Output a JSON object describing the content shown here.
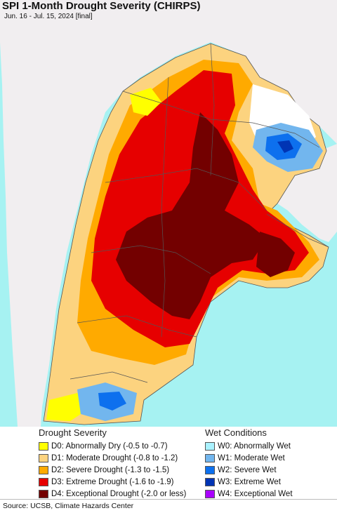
{
  "header": {
    "title": "SPI 1-Month Drought Severity (CHIRPS)",
    "subtitle": "Jun. 16 - Jul. 15, 2024 [final]"
  },
  "colors": {
    "ocean": "#a6f2f2",
    "neighbor_land": "#f1eef0",
    "no_data": "#ffffff",
    "boundary": "#555555",
    "D0": "#ffff00",
    "D1": "#fcd37f",
    "D2": "#ffaa00",
    "D3": "#e60000",
    "D4": "#730000",
    "W0": "#aaf2ff",
    "W1": "#72b6ee",
    "W2": "#0d70ee",
    "W3": "#0034b4",
    "W4": "#aa00ff"
  },
  "legend": {
    "drought_heading": "Drought Severity",
    "wet_heading": "Wet Conditions",
    "drought_items": [
      {
        "code": "D0",
        "label": "D0: Abnormally Dry (-0.5 to -0.7)",
        "color": "#ffff00"
      },
      {
        "code": "D1",
        "label": "D1: Moderate Drought (-0.8 to -1.2)",
        "color": "#fcd37f"
      },
      {
        "code": "D2",
        "label": "D2: Severe Drought (-1.3 to -1.5)",
        "color": "#ffaa00"
      },
      {
        "code": "D3",
        "label": "D3: Extreme Drought (-1.6 to -1.9)",
        "color": "#e60000"
      },
      {
        "code": "D4",
        "label": "D4: Exceptional Drought (-2.0 or less)",
        "color": "#730000"
      }
    ],
    "wet_items": [
      {
        "code": "W0",
        "label": "W0: Abnormally Wet",
        "color": "#aaf2ff"
      },
      {
        "code": "W1",
        "label": "W1: Moderate Wet",
        "color": "#72b6ee"
      },
      {
        "code": "W2",
        "label": "W2: Severe Wet",
        "color": "#0d70ee"
      },
      {
        "code": "W3",
        "label": "W3: Extreme Wet",
        "color": "#0034b4"
      },
      {
        "code": "W4",
        "label": "W4: Exceptional Wet",
        "color": "#aa00ff"
      }
    ]
  },
  "footer": {
    "source": "Source: UCSB, Climate Hazards Center"
  }
}
